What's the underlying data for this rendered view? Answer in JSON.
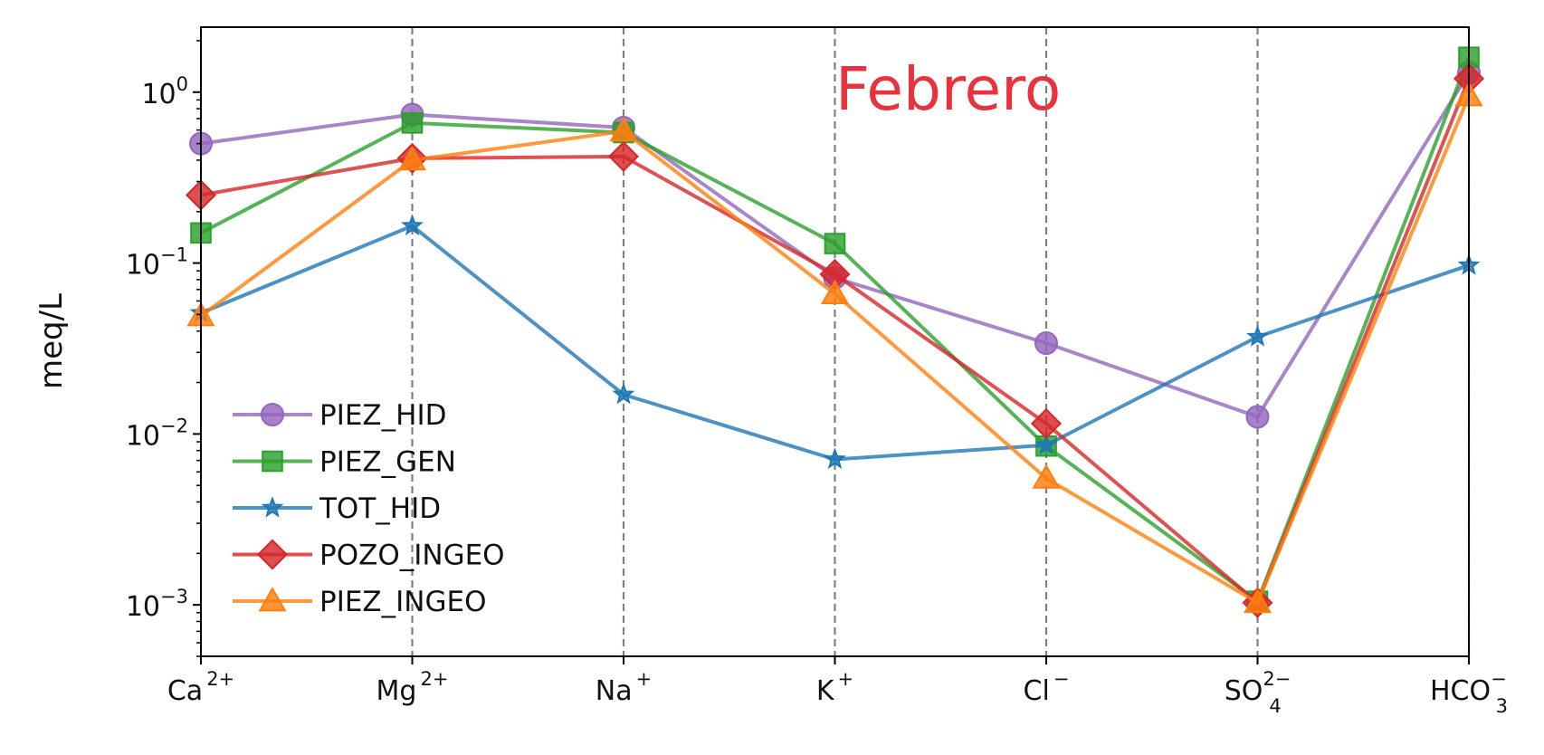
{
  "chart_data": {
    "type": "line",
    "title": "",
    "annotation": "Febrero",
    "xlabel": "",
    "ylabel": "meq/L",
    "yscale": "log",
    "ylim": [
      0.0005,
      2.4
    ],
    "yticks": [
      {
        "value": 1,
        "base": "10",
        "exp": "0"
      },
      {
        "value": 0.1,
        "base": "10",
        "exp": "−1"
      },
      {
        "value": 0.01,
        "base": "10",
        "exp": "−2"
      },
      {
        "value": 0.001,
        "base": "10",
        "exp": "−3"
      }
    ],
    "categories": [
      {
        "base": "Ca",
        "sup": "2+",
        "sub": ""
      },
      {
        "base": "Mg",
        "sup": "2+",
        "sub": ""
      },
      {
        "base": "Na",
        "sup": "+",
        "sub": ""
      },
      {
        "base": "K",
        "sup": "+",
        "sub": ""
      },
      {
        "base": "Cl",
        "sup": "−",
        "sub": ""
      },
      {
        "base": "SO",
        "sup": "2−",
        "sub": "4"
      },
      {
        "base": "HCO",
        "sup": "−",
        "sub": "3"
      }
    ],
    "grid": "vertical dashed lines at each category",
    "legend_position": "lower-left",
    "series": [
      {
        "name": "PIEZ_HID",
        "color": "#9467bd",
        "marker": "circle",
        "values": [
          0.5,
          0.74,
          0.62,
          0.082,
          0.034,
          0.0126,
          1.3
        ]
      },
      {
        "name": "PIEZ_GEN",
        "color": "#2ca02c",
        "marker": "square",
        "values": [
          0.15,
          0.66,
          0.58,
          0.13,
          0.0085,
          0.00105,
          1.6
        ]
      },
      {
        "name": "TOT_HID",
        "color": "#1f77b4",
        "marker": "star",
        "values": [
          0.051,
          0.165,
          0.017,
          0.0071,
          0.0086,
          0.037,
          0.097
        ]
      },
      {
        "name": "POZO_INGEO",
        "color": "#d62728",
        "marker": "diamond",
        "values": [
          0.25,
          0.41,
          0.42,
          0.086,
          0.0115,
          0.00103,
          1.2
        ]
      },
      {
        "name": "PIEZ_INGEO",
        "color": "#ff7f0e",
        "marker": "triangle",
        "values": [
          0.049,
          0.4,
          0.59,
          0.066,
          0.0055,
          0.00103,
          0.95
        ]
      }
    ]
  }
}
